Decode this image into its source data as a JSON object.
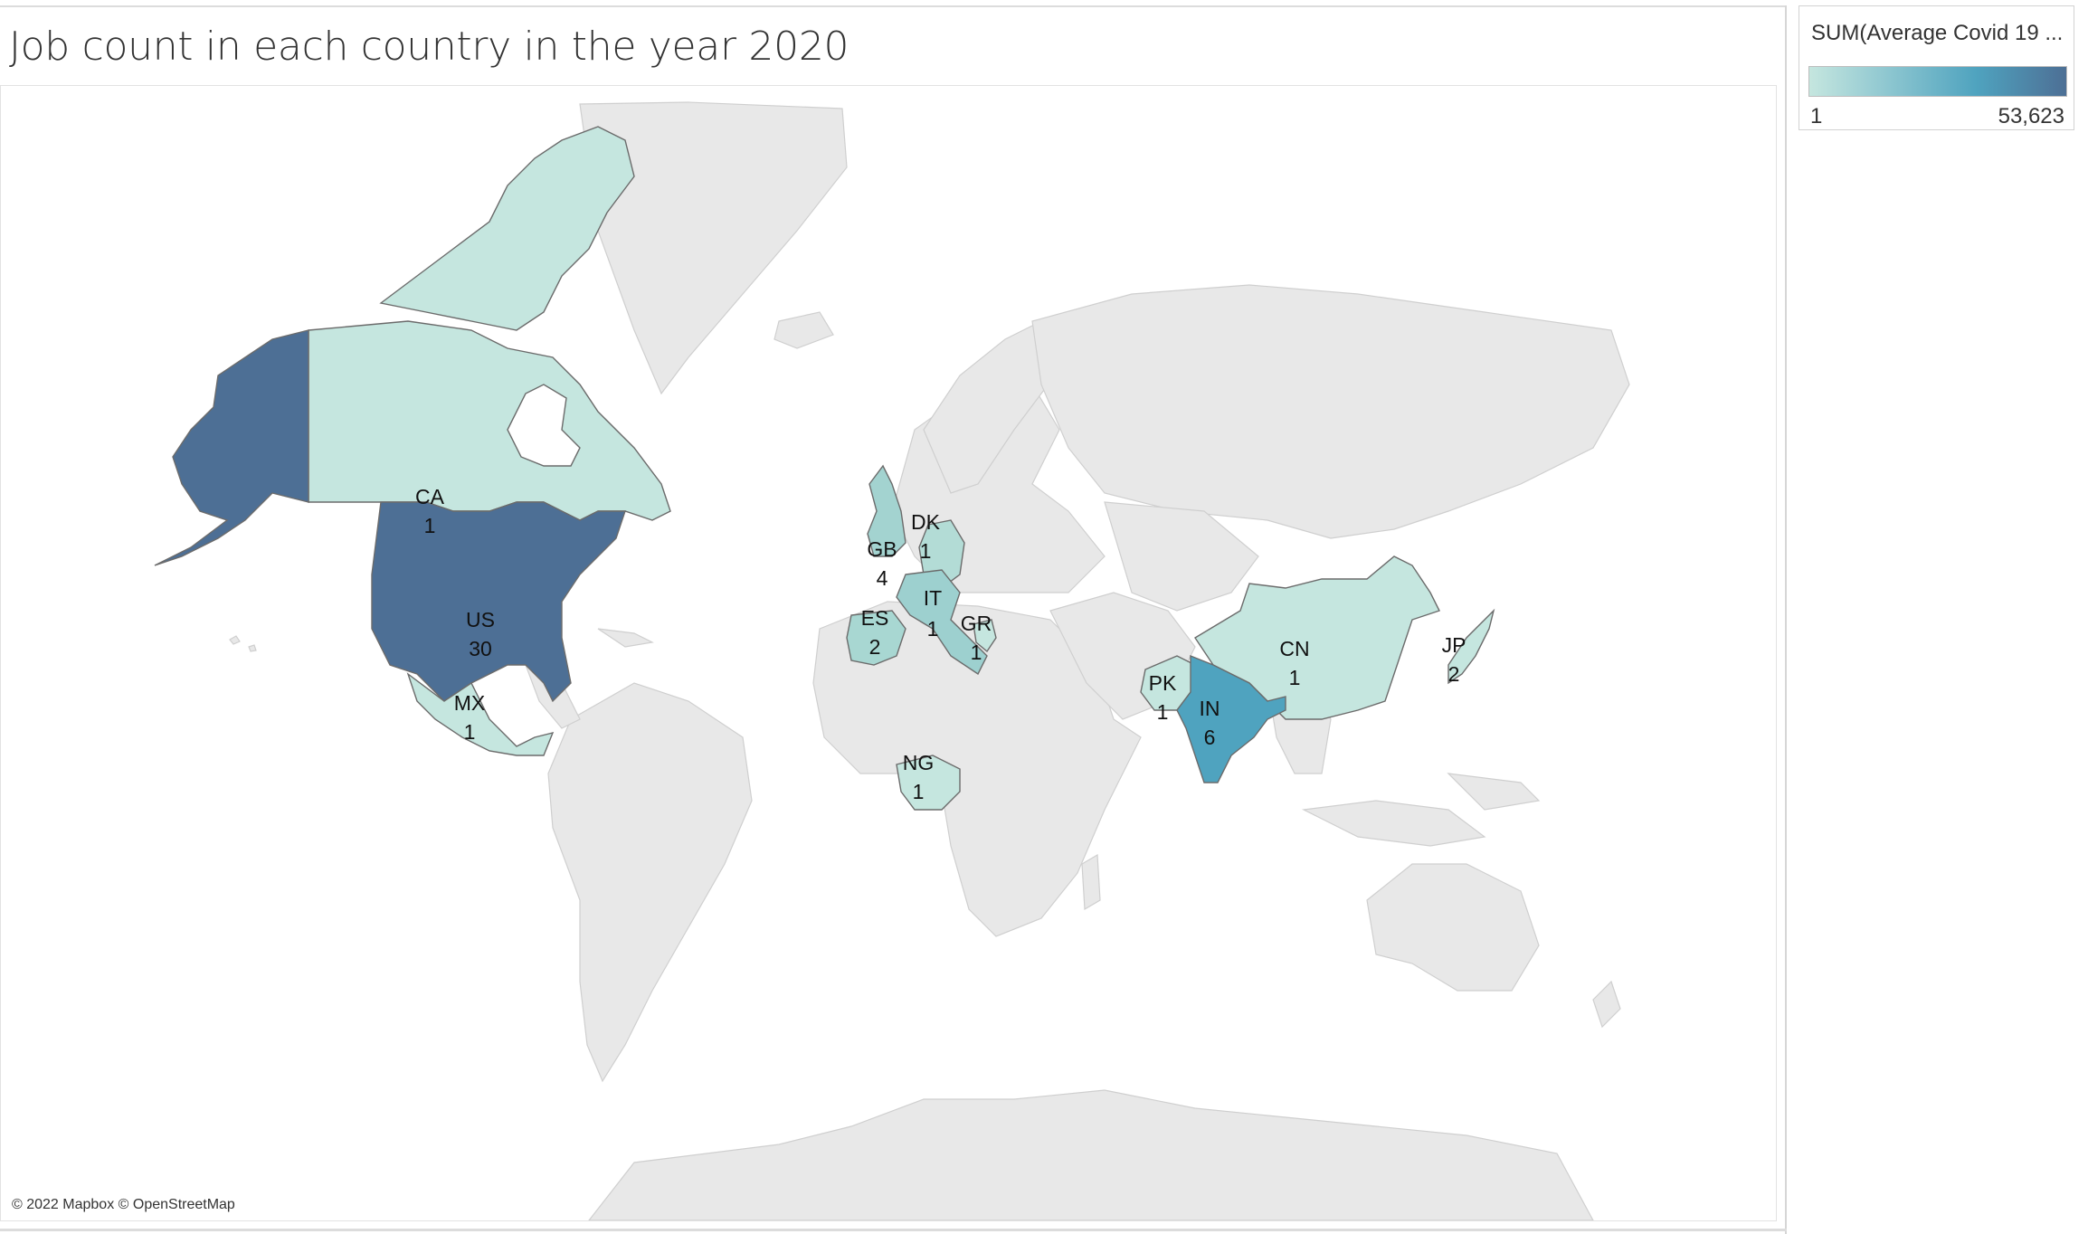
{
  "title": "Job count in each country in the year 2020",
  "attribution": "© 2022 Mapbox © OpenStreetMap",
  "legend": {
    "title": "SUM(Average Covid 19 ...",
    "min_label": "1",
    "max_label": "53,623",
    "color_low": "#c5e6df",
    "color_mid": "#4fa3bf",
    "color_high": "#4d6f95"
  },
  "colors": {
    "land": "#e6e6e6",
    "ocean": "#ffffff",
    "border": "#c8c8c8"
  },
  "countries": [
    {
      "code": "CA",
      "count": "1",
      "level": 0.02
    },
    {
      "code": "US",
      "count": "30",
      "level": 1.0
    },
    {
      "code": "MX",
      "count": "1",
      "level": 0.05
    },
    {
      "code": "GB",
      "count": "4",
      "level": 0.25
    },
    {
      "code": "DK",
      "count": "1",
      "level": 0.08
    },
    {
      "code": "IT",
      "count": "1",
      "level": 0.2
    },
    {
      "code": "ES",
      "count": "2",
      "level": 0.15
    },
    {
      "code": "GR",
      "count": "1",
      "level": 0.1
    },
    {
      "code": "NG",
      "count": "1",
      "level": 0.04
    },
    {
      "code": "PK",
      "count": "1",
      "level": 0.04
    },
    {
      "code": "IN",
      "count": "6",
      "level": 0.7
    },
    {
      "code": "CN",
      "count": "1",
      "level": 0.03
    },
    {
      "code": "JP",
      "count": "2",
      "level": 0.05
    }
  ]
}
